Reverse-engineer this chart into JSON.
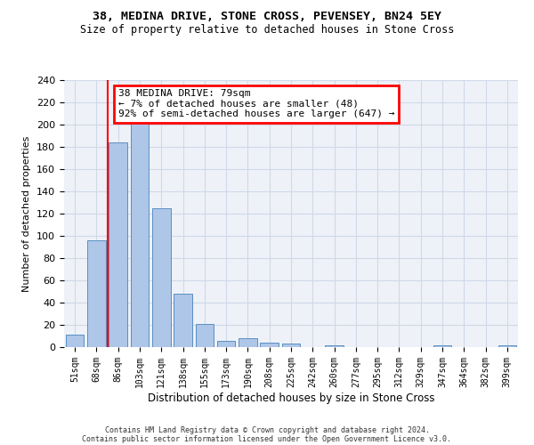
{
  "title_line1": "38, MEDINA DRIVE, STONE CROSS, PEVENSEY, BN24 5EY",
  "title_line2": "Size of property relative to detached houses in Stone Cross",
  "xlabel": "Distribution of detached houses by size in Stone Cross",
  "ylabel": "Number of detached properties",
  "bar_labels": [
    "51sqm",
    "68sqm",
    "86sqm",
    "103sqm",
    "121sqm",
    "138sqm",
    "155sqm",
    "173sqm",
    "190sqm",
    "208sqm",
    "225sqm",
    "242sqm",
    "260sqm",
    "277sqm",
    "295sqm",
    "312sqm",
    "329sqm",
    "347sqm",
    "364sqm",
    "382sqm",
    "399sqm"
  ],
  "bar_values": [
    11,
    96,
    184,
    202,
    125,
    48,
    21,
    6,
    8,
    4,
    3,
    0,
    2,
    0,
    0,
    0,
    0,
    2,
    0,
    0,
    2
  ],
  "bar_color": "#aec6e8",
  "bar_edgecolor": "#5a8fc2",
  "grid_color": "#d0d8e8",
  "bg_color": "#eef2f8",
  "red_line_x": 1.5,
  "annotation_text": "38 MEDINA DRIVE: 79sqm\n← 7% of detached houses are smaller (48)\n92% of semi-detached houses are larger (647) →",
  "annotation_box_color": "white",
  "annotation_box_edgecolor": "red",
  "footer_line1": "Contains HM Land Registry data © Crown copyright and database right 2024.",
  "footer_line2": "Contains public sector information licensed under the Open Government Licence v3.0.",
  "ylim": [
    0,
    240
  ],
  "yticks": [
    0,
    20,
    40,
    60,
    80,
    100,
    120,
    140,
    160,
    180,
    200,
    220,
    240
  ]
}
